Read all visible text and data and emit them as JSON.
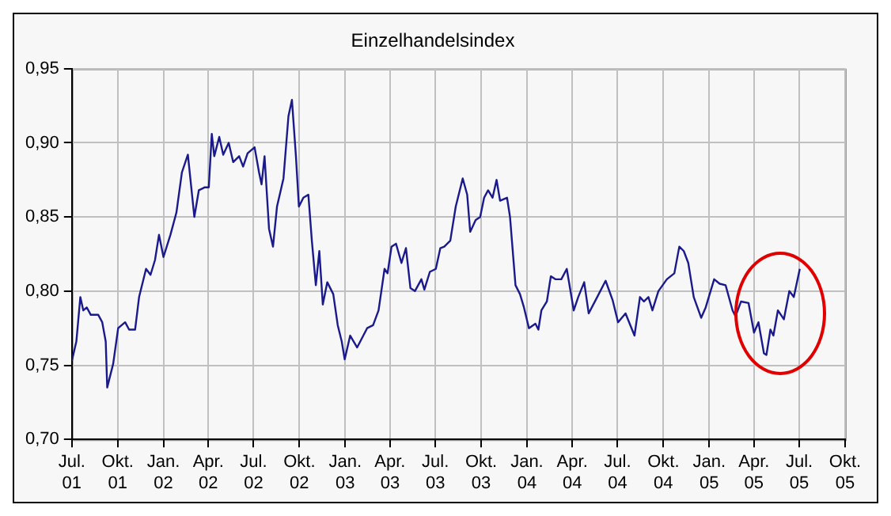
{
  "chart_data": {
    "type": "line",
    "title": "Einzelhandelsindex",
    "x": [
      "2001-07-01",
      "2001-07-10",
      "2001-07-18",
      "2001-07-24",
      "2001-07-31",
      "2001-08-08",
      "2001-08-23",
      "2001-08-31",
      "2001-09-07",
      "2001-09-10",
      "2001-09-22",
      "2001-10-02",
      "2001-10-16",
      "2001-10-24",
      "2001-11-05",
      "2001-11-13",
      "2001-11-27",
      "2001-12-06",
      "2001-12-15",
      "2001-12-23",
      "2002-01-01",
      "2002-01-15",
      "2002-01-27",
      "2002-02-07",
      "2002-02-19",
      "2002-03-04",
      "2002-03-13",
      "2002-03-25",
      "2002-04-02",
      "2002-04-08",
      "2002-04-13",
      "2002-04-23",
      "2002-05-01",
      "2002-05-12",
      "2002-05-21",
      "2002-06-02",
      "2002-06-10",
      "2002-06-19",
      "2002-07-03",
      "2002-07-12",
      "2002-07-17",
      "2002-07-23",
      "2002-08-01",
      "2002-08-09",
      "2002-08-17",
      "2002-08-30",
      "2002-09-09",
      "2002-09-16",
      "2002-09-24",
      "2002-09-30",
      "2002-10-09",
      "2002-10-19",
      "2002-10-26",
      "2002-11-03",
      "2002-11-10",
      "2002-11-17",
      "2002-11-26",
      "2002-12-08",
      "2002-12-17",
      "2002-12-25",
      "2002-12-31",
      "2003-01-11",
      "2003-01-25",
      "2003-02-14",
      "2003-02-26",
      "2003-03-09",
      "2003-03-21",
      "2003-03-27",
      "2003-04-04",
      "2003-04-13",
      "2003-04-24",
      "2003-05-03",
      "2003-05-12",
      "2003-05-21",
      "2003-06-03",
      "2003-06-09",
      "2003-06-20",
      "2003-07-02",
      "2003-07-11",
      "2003-07-19",
      "2003-07-31",
      "2003-08-11",
      "2003-08-25",
      "2003-09-03",
      "2003-09-09",
      "2003-09-20",
      "2003-09-29",
      "2003-10-07",
      "2003-10-15",
      "2003-10-24",
      "2003-11-01",
      "2003-11-08",
      "2003-11-22",
      "2003-11-28",
      "2003-12-09",
      "2003-12-18",
      "2003-12-26",
      "2004-01-05",
      "2004-01-18",
      "2004-01-24",
      "2004-01-30",
      "2004-02-10",
      "2004-02-18",
      "2004-02-27",
      "2004-03-10",
      "2004-03-21",
      "2004-04-04",
      "2004-04-13",
      "2004-04-25",
      "2004-05-04",
      "2004-05-18",
      "2004-06-07",
      "2004-06-21",
      "2004-07-02",
      "2004-07-17",
      "2004-08-04",
      "2004-08-15",
      "2004-08-23",
      "2004-09-01",
      "2004-09-09",
      "2004-09-21",
      "2004-10-08",
      "2004-10-23",
      "2004-11-02",
      "2004-11-11",
      "2004-11-20",
      "2004-12-01",
      "2004-12-16",
      "2004-12-25",
      "2005-01-11",
      "2005-01-22",
      "2005-02-03",
      "2005-02-17",
      "2005-02-23",
      "2005-03-06",
      "2005-03-21",
      "2005-04-01",
      "2005-04-10",
      "2005-04-21",
      "2005-04-26",
      "2005-05-04",
      "2005-05-10",
      "2005-05-19",
      "2005-05-31",
      "2005-06-11",
      "2005-06-20",
      "2005-07-02"
    ],
    "series": [
      {
        "color": "#1a1a8c",
        "values": [
          0.753,
          0.766,
          0.796,
          0.787,
          0.789,
          0.784,
          0.784,
          0.779,
          0.766,
          0.735,
          0.751,
          0.775,
          0.779,
          0.774,
          0.774,
          0.796,
          0.815,
          0.811,
          0.821,
          0.838,
          0.823,
          0.838,
          0.853,
          0.88,
          0.892,
          0.85,
          0.868,
          0.87,
          0.87,
          0.906,
          0.891,
          0.904,
          0.892,
          0.9,
          0.887,
          0.891,
          0.884,
          0.893,
          0.897,
          0.88,
          0.872,
          0.891,
          0.842,
          0.83,
          0.857,
          0.876,
          0.918,
          0.929,
          0.891,
          0.857,
          0.863,
          0.865,
          0.834,
          0.804,
          0.827,
          0.791,
          0.806,
          0.798,
          0.777,
          0.766,
          0.754,
          0.77,
          0.762,
          0.775,
          0.777,
          0.787,
          0.815,
          0.812,
          0.83,
          0.832,
          0.819,
          0.829,
          0.802,
          0.8,
          0.808,
          0.801,
          0.813,
          0.815,
          0.829,
          0.83,
          0.834,
          0.857,
          0.876,
          0.865,
          0.84,
          0.848,
          0.85,
          0.863,
          0.868,
          0.863,
          0.875,
          0.861,
          0.863,
          0.85,
          0.804,
          0.798,
          0.789,
          0.775,
          0.778,
          0.774,
          0.787,
          0.793,
          0.81,
          0.808,
          0.808,
          0.815,
          0.787,
          0.796,
          0.806,
          0.785,
          0.794,
          0.807,
          0.794,
          0.779,
          0.785,
          0.77,
          0.796,
          0.793,
          0.796,
          0.787,
          0.8,
          0.808,
          0.812,
          0.83,
          0.827,
          0.819,
          0.796,
          0.782,
          0.789,
          0.808,
          0.805,
          0.804,
          0.787,
          0.783,
          0.793,
          0.792,
          0.772,
          0.779,
          0.758,
          0.757,
          0.774,
          0.77,
          0.787,
          0.781,
          0.8,
          0.796,
          0.815
        ]
      }
    ],
    "xlim": [
      "2001-07-01",
      "2005-10-01"
    ],
    "xticks": [
      {
        "value": "2001-07-01",
        "label": "Jul. 01"
      },
      {
        "value": "2001-10-01",
        "label": "Okt. 01"
      },
      {
        "value": "2002-01-01",
        "label": "Jan. 02"
      },
      {
        "value": "2002-04-01",
        "label": "Apr. 02"
      },
      {
        "value": "2002-07-01",
        "label": "Jul. 02"
      },
      {
        "value": "2002-10-01",
        "label": "Okt. 02"
      },
      {
        "value": "2003-01-01",
        "label": "Jan. 03"
      },
      {
        "value": "2003-04-01",
        "label": "Apr. 03"
      },
      {
        "value": "2003-07-01",
        "label": "Jul. 03"
      },
      {
        "value": "2003-10-01",
        "label": "Okt. 03"
      },
      {
        "value": "2004-01-01",
        "label": "Jan. 04"
      },
      {
        "value": "2004-04-01",
        "label": "Apr. 04"
      },
      {
        "value": "2004-07-01",
        "label": "Jul. 04"
      },
      {
        "value": "2004-10-01",
        "label": "Okt. 04"
      },
      {
        "value": "2005-01-01",
        "label": "Jan. 05"
      },
      {
        "value": "2005-04-01",
        "label": "Apr. 05"
      },
      {
        "value": "2005-07-01",
        "label": "Jul. 05"
      },
      {
        "value": "2005-10-01",
        "label": "Okt. 05"
      }
    ],
    "ylim": [
      0.7,
      0.95
    ],
    "yticks": [
      {
        "value": 0.7,
        "label": "0,70"
      },
      {
        "value": 0.75,
        "label": "0,75"
      },
      {
        "value": 0.8,
        "label": "0,80"
      },
      {
        "value": 0.85,
        "label": "0,85"
      },
      {
        "value": 0.9,
        "label": "0,90"
      },
      {
        "value": 0.95,
        "label": "0,95"
      }
    ],
    "grid": true,
    "legend": false,
    "marker": "none",
    "line_style": "solid"
  }
}
